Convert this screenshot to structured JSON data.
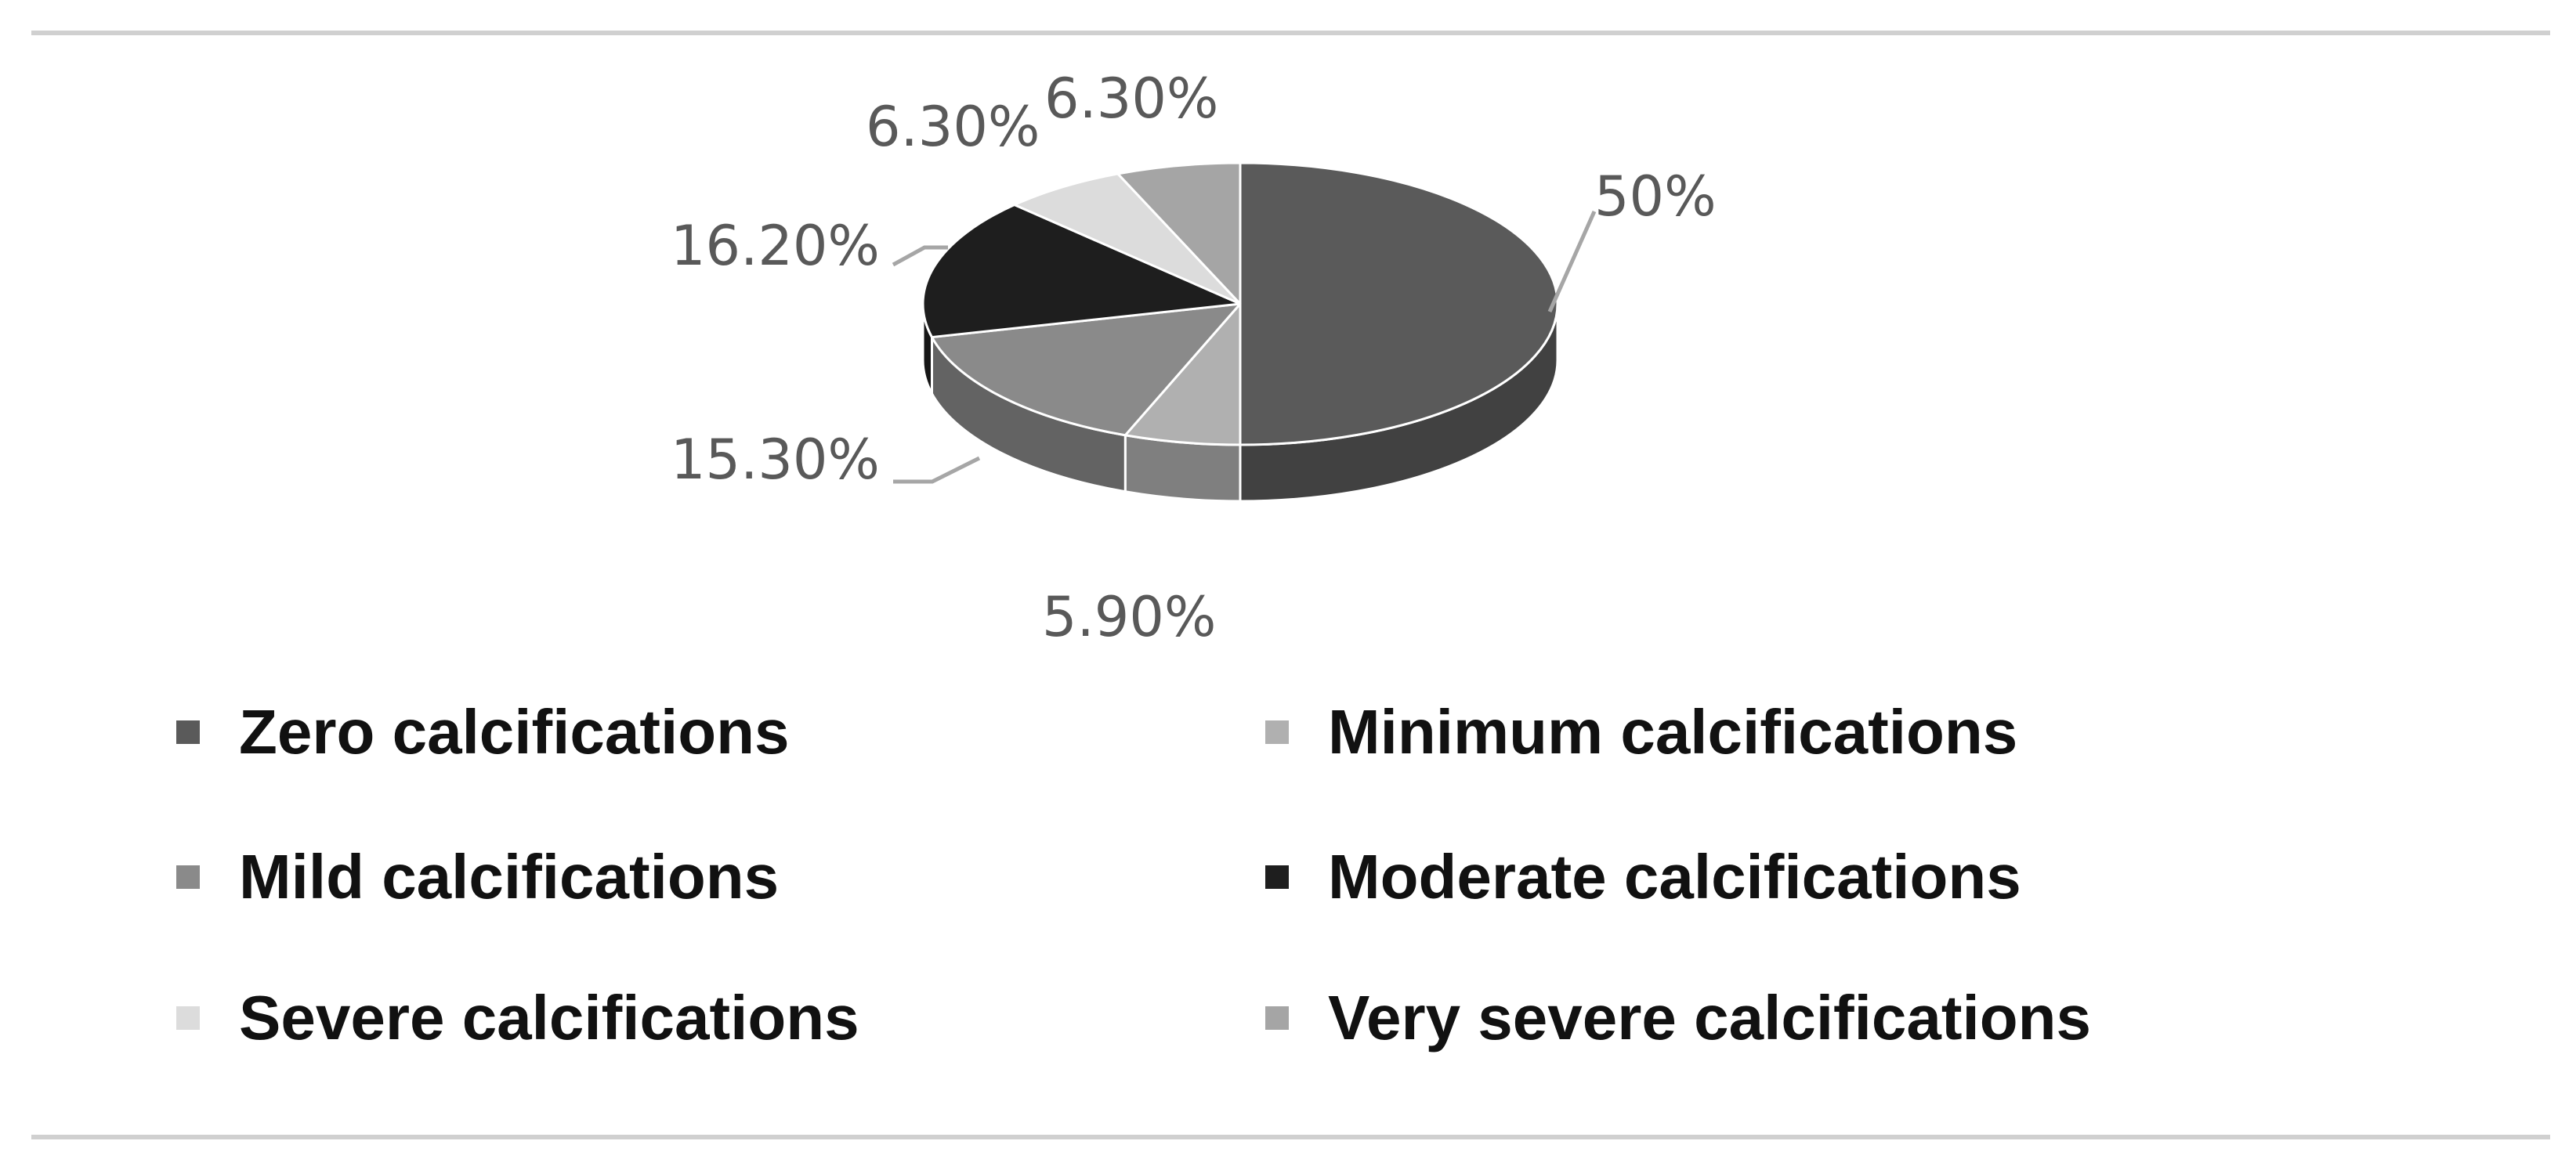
{
  "chart_data": {
    "type": "pie",
    "variant": "3d",
    "categories": [
      "Zero calcifications",
      "Minimum calcifications",
      "Mild calcifications",
      "Moderate calcifications",
      "Severe calcifications",
      "Very severe calcifications"
    ],
    "values": [
      50,
      5.9,
      15.3,
      16.2,
      6.3,
      6.3
    ],
    "data_labels": [
      "50%",
      "5.90%",
      "15.30%",
      "16.20%",
      "6.30%",
      "6.30%"
    ],
    "colors": [
      "#5a5a5a",
      "#b0b0b0",
      "#8a8a8a",
      "#1e1e1e",
      "#dcdcdc",
      "#a5a5a5"
    ],
    "legend_position": "bottom",
    "title": ""
  }
}
